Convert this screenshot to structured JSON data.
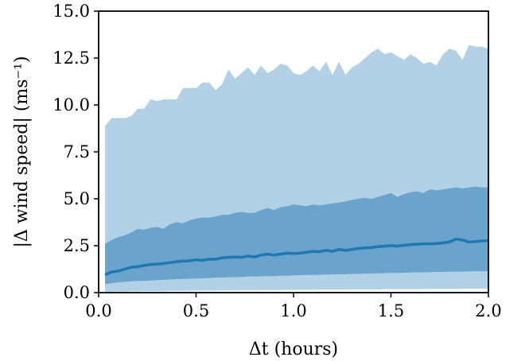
{
  "chart_data": {
    "type": "area",
    "xlabel": "Δt (hours)",
    "ylabel": "|Δ wind speed| (ms⁻¹)",
    "xlim": [
      0.0,
      2.0
    ],
    "ylim": [
      0.0,
      15.0
    ],
    "xticks": [
      "0.0",
      "0.5",
      "1.0",
      "1.5",
      "2.0"
    ],
    "yticks": [
      "0.0",
      "2.5",
      "5.0",
      "7.5",
      "10.0",
      "12.5",
      "15.0"
    ],
    "grid": false,
    "colors": {
      "outer_band": "#b3d1e6",
      "inner_band": "#6aa3cc",
      "median_line": "#1f77b4"
    },
    "x": [
      0.033,
      0.067,
      0.1,
      0.133,
      0.167,
      0.2,
      0.233,
      0.267,
      0.3,
      0.333,
      0.367,
      0.4,
      0.433,
      0.467,
      0.5,
      0.533,
      0.567,
      0.6,
      0.633,
      0.667,
      0.7,
      0.733,
      0.767,
      0.8,
      0.833,
      0.867,
      0.9,
      0.933,
      0.967,
      1.0,
      1.033,
      1.067,
      1.1,
      1.133,
      1.167,
      1.2,
      1.233,
      1.267,
      1.3,
      1.333,
      1.367,
      1.4,
      1.433,
      1.467,
      1.5,
      1.533,
      1.567,
      1.6,
      1.633,
      1.667,
      1.7,
      1.733,
      1.767,
      1.8,
      1.833,
      1.867,
      1.9,
      1.933,
      1.967,
      2.0
    ],
    "series": [
      {
        "role": "outer_band",
        "upper": [
          8.9,
          9.3,
          9.3,
          9.3,
          9.4,
          9.8,
          9.8,
          10.3,
          10.2,
          10.3,
          10.3,
          10.3,
          10.9,
          10.9,
          10.9,
          11.2,
          11.2,
          10.8,
          11.1,
          11.9,
          11.4,
          11.7,
          12.0,
          11.6,
          12.1,
          11.7,
          11.9,
          12.2,
          12.1,
          11.7,
          11.6,
          11.8,
          12.1,
          11.8,
          12.3,
          11.6,
          12.3,
          11.6,
          12.0,
          12.2,
          12.5,
          12.8,
          13.0,
          12.7,
          12.8,
          12.6,
          12.4,
          12.7,
          12.5,
          12.2,
          12.3,
          12.1,
          12.7,
          13.0,
          12.9,
          12.4,
          13.2,
          13.1,
          13.1,
          13.0
        ],
        "lower": [
          0.05,
          0.05,
          0.06,
          0.06,
          0.07,
          0.07,
          0.08,
          0.08,
          0.08,
          0.09,
          0.09,
          0.1,
          0.1,
          0.1,
          0.11,
          0.11,
          0.11,
          0.12,
          0.12,
          0.12,
          0.13,
          0.13,
          0.13,
          0.13,
          0.14,
          0.14,
          0.14,
          0.14,
          0.15,
          0.15,
          0.15,
          0.15,
          0.15,
          0.16,
          0.16,
          0.16,
          0.16,
          0.16,
          0.17,
          0.17,
          0.17,
          0.17,
          0.17,
          0.18,
          0.18,
          0.18,
          0.18,
          0.18,
          0.18,
          0.19,
          0.19,
          0.19,
          0.19,
          0.19,
          0.19,
          0.2,
          0.2,
          0.2,
          0.2,
          0.2
        ]
      },
      {
        "role": "inner_band",
        "upper": [
          2.6,
          2.8,
          2.95,
          3.05,
          3.2,
          3.4,
          3.35,
          3.45,
          3.5,
          3.4,
          3.65,
          3.75,
          3.7,
          3.85,
          3.95,
          4.0,
          4.0,
          4.05,
          4.15,
          4.15,
          4.25,
          4.3,
          4.25,
          4.25,
          4.4,
          4.5,
          4.4,
          4.55,
          4.6,
          4.7,
          4.65,
          4.6,
          4.7,
          4.65,
          4.7,
          4.75,
          4.8,
          4.85,
          4.95,
          5.0,
          5.05,
          5.0,
          5.1,
          5.2,
          5.3,
          5.1,
          5.25,
          5.35,
          5.4,
          5.3,
          5.5,
          5.45,
          5.5,
          5.55,
          5.6,
          5.55,
          5.6,
          5.65,
          5.6,
          5.6
        ],
        "lower": [
          0.45,
          0.5,
          0.55,
          0.57,
          0.6,
          0.62,
          0.63,
          0.65,
          0.67,
          0.68,
          0.7,
          0.72,
          0.73,
          0.74,
          0.75,
          0.76,
          0.78,
          0.8,
          0.8,
          0.82,
          0.82,
          0.83,
          0.85,
          0.86,
          0.87,
          0.88,
          0.88,
          0.9,
          0.9,
          0.92,
          0.93,
          0.94,
          0.94,
          0.95,
          0.96,
          0.97,
          0.98,
          0.98,
          1.0,
          1.0,
          1.01,
          1.02,
          1.03,
          1.04,
          1.05,
          1.05,
          1.06,
          1.07,
          1.08,
          1.08,
          1.09,
          1.1,
          1.1,
          1.11,
          1.12,
          1.12,
          1.13,
          1.14,
          1.14,
          1.15
        ]
      },
      {
        "role": "median_line",
        "values": [
          0.95,
          1.1,
          1.15,
          1.25,
          1.35,
          1.38,
          1.45,
          1.5,
          1.52,
          1.55,
          1.6,
          1.65,
          1.68,
          1.7,
          1.75,
          1.72,
          1.78,
          1.78,
          1.85,
          1.88,
          1.9,
          1.88,
          1.95,
          1.9,
          2.0,
          2.05,
          2.0,
          2.05,
          2.1,
          2.08,
          2.1,
          2.15,
          2.2,
          2.18,
          2.25,
          2.2,
          2.3,
          2.25,
          2.3,
          2.35,
          2.38,
          2.4,
          2.45,
          2.48,
          2.5,
          2.48,
          2.52,
          2.55,
          2.58,
          2.6,
          2.6,
          2.62,
          2.65,
          2.7,
          2.85,
          2.8,
          2.7,
          2.72,
          2.75,
          2.78
        ]
      }
    ]
  }
}
